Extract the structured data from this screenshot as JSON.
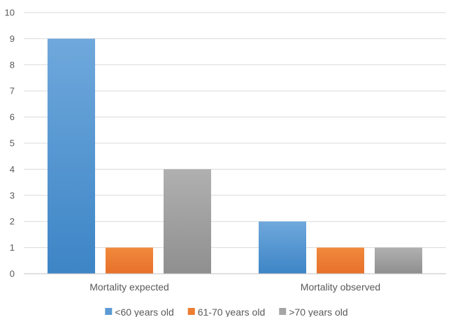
{
  "chart_data": {
    "type": "bar",
    "categories": [
      "Mortality expected",
      "Mortality observed"
    ],
    "series": [
      {
        "name": "<60 years old",
        "values": [
          9,
          2
        ]
      },
      {
        "name": "61-70 years old",
        "values": [
          1,
          1
        ]
      },
      {
        "name": ">70 years old",
        "values": [
          4,
          1
        ]
      }
    ],
    "ylim": [
      0,
      10
    ],
    "yticks": [
      "0",
      "1",
      "2",
      "3",
      "4",
      "5",
      "6",
      "7",
      "8",
      "9",
      "10"
    ],
    "grid": true,
    "legend_position": "bottom",
    "colors": {
      "series": [
        "#5b9bd5",
        "#ed7d31",
        "#a5a5a5"
      ],
      "series_top": [
        "#6fa8dc",
        "#f08a3d",
        "#b0b0b0"
      ],
      "series_bottom": [
        "#3d85c6",
        "#e8702a",
        "#8f8f8f"
      ],
      "grid": "#d9d9d9",
      "axis": "#bfbfbf"
    }
  }
}
